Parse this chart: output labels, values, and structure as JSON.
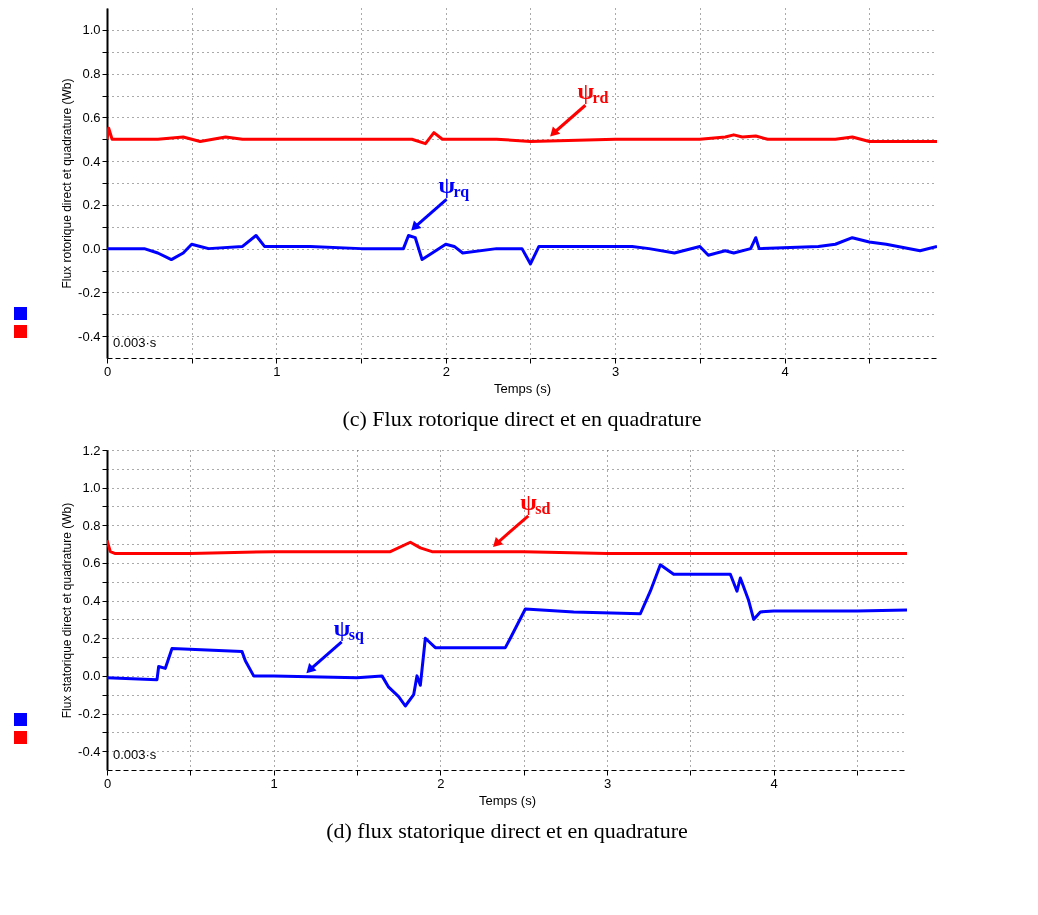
{
  "chart_data": [
    {
      "type": "line",
      "title": "(c) Flux rotorique direct et en quadrature",
      "xlabel": "Temps (s)",
      "ylabel": "Flux rotorique direct et quadrature (Wb)",
      "xlim": [
        0,
        4.9
      ],
      "ylim": [
        -0.5,
        1.1
      ],
      "xticks": [
        0,
        {
          "value": 0.5,
          "label": null
        },
        1,
        {
          "value": 1.5,
          "label": null
        },
        2,
        {
          "value": 2.5,
          "label": null
        },
        3,
        {
          "value": 3.5,
          "label": null
        },
        4,
        {
          "value": 4.5,
          "label": null
        }
      ],
      "yticks": [
        {
          "value": -0.4,
          "label": "-0.4"
        },
        {
          "value": -0.3,
          "label": null
        },
        -0.2,
        {
          "value": -0.1,
          "label": null
        },
        {
          "value": 0,
          "label": "0.0"
        },
        {
          "value": 0.1,
          "label": null
        },
        0.2,
        {
          "value": 0.3,
          "label": null
        },
        0.4,
        {
          "value": 0.5,
          "label": null
        },
        0.6,
        {
          "value": 0.7,
          "label": null
        },
        0.8,
        {
          "value": 0.9,
          "label": null
        },
        {
          "value": 1,
          "label": "1.0"
        }
      ],
      "grid": true,
      "line_style": "solid",
      "series": [
        {
          "color": "#ff0000",
          "x": [
            0,
            0.01,
            0.03,
            0.3,
            0.45,
            0.55,
            0.7,
            0.8,
            1.0,
            1.5,
            1.8,
            1.88,
            1.93,
            1.98,
            2.3,
            2.5,
            3.0,
            3.3,
            3.5,
            3.65,
            3.7,
            3.75,
            3.83,
            3.9,
            4.3,
            4.4,
            4.5,
            4.9
          ],
          "values": [
            0.5,
            0.55,
            0.5,
            0.5,
            0.51,
            0.49,
            0.51,
            0.5,
            0.5,
            0.5,
            0.5,
            0.48,
            0.53,
            0.5,
            0.5,
            0.49,
            0.5,
            0.5,
            0.5,
            0.51,
            0.52,
            0.51,
            0.515,
            0.5,
            0.5,
            0.51,
            0.49,
            0.49
          ]
        },
        {
          "color": "#0000ff",
          "x": [
            0,
            0.22,
            0.3,
            0.38,
            0.45,
            0.5,
            0.55,
            0.6,
            0.8,
            0.88,
            0.93,
            1.2,
            1.5,
            1.75,
            1.78,
            1.82,
            1.86,
            1.92,
            2.0,
            2.05,
            2.1,
            2.3,
            2.45,
            2.5,
            2.55,
            2.8,
            3.1,
            3.2,
            3.35,
            3.5,
            3.55,
            3.65,
            3.7,
            3.8,
            3.83,
            3.85,
            4.2,
            4.3,
            4.4,
            4.5,
            4.6,
            4.8,
            4.9
          ],
          "values": [
            0,
            0,
            -0.02,
            -0.05,
            -0.02,
            0.02,
            0.01,
            0,
            0.01,
            0.06,
            0.01,
            0.01,
            0,
            0,
            0.06,
            0.05,
            -0.05,
            -0.02,
            0.02,
            0.01,
            -0.02,
            0,
            0,
            -0.07,
            0.01,
            0.01,
            0.01,
            0,
            -0.02,
            0.01,
            -0.03,
            -0.01,
            -0.02,
            0,
            0.05,
            0,
            0.01,
            0.02,
            0.05,
            0.03,
            0.02,
            -0.01,
            0.01
          ]
        }
      ],
      "annotations": [
        {
          "text": "ψ$_{rd}$",
          "x": 2.6,
          "y": 0.5
        },
        {
          "text": "ψ$_{rq}$",
          "x": 1.78,
          "y": 0.07
        },
        "0.003·s"
      ]
    },
    {
      "type": "line",
      "title": "(d) flux statorique direct et en quadrature",
      "xlabel": "Temps (s)",
      "ylabel": "Flux statorique direct et quadrature (Wb)",
      "xlim": [
        0,
        4.8
      ],
      "ylim": [
        -0.5,
        1.2
      ],
      "xticks": [
        0,
        {
          "value": 0.5,
          "label": null
        },
        1,
        {
          "value": 1.5,
          "label": null
        },
        2,
        {
          "value": 2.5,
          "label": null
        },
        3,
        {
          "value": 3.5,
          "label": null
        },
        4,
        {
          "value": 4.5,
          "label": null
        }
      ],
      "yticks": [
        {
          "value": -0.4,
          "label": "-0.4"
        },
        {
          "value": -0.3,
          "label": null
        },
        -0.2,
        {
          "value": -0.1,
          "label": null
        },
        {
          "value": 0,
          "label": "0.0"
        },
        {
          "value": 0.1,
          "label": null
        },
        0.2,
        {
          "value": 0.3,
          "label": null
        },
        0.4,
        {
          "value": 0.5,
          "label": null
        },
        0.6,
        {
          "value": 0.7,
          "label": null
        },
        0.8,
        {
          "value": 0.9,
          "label": null
        },
        {
          "value": 1,
          "label": "1.0"
        },
        {
          "value": 1.1,
          "label": null
        },
        1.2
      ],
      "grid": true,
      "line_style": "solid",
      "series": [
        {
          "color": "#ff0000",
          "x": [
            0,
            0.02,
            0.05,
            0.5,
            1.0,
            1.7,
            1.82,
            1.88,
            1.95,
            2.5,
            3.0,
            4.0,
            4.8
          ],
          "values": [
            0.72,
            0.66,
            0.65,
            0.65,
            0.66,
            0.66,
            0.71,
            0.68,
            0.66,
            0.66,
            0.65,
            0.65,
            0.65
          ]
        },
        {
          "color": "#0000ff",
          "x": [
            0,
            0.3,
            0.31,
            0.35,
            0.39,
            0.81,
            0.83,
            0.88,
            1.0,
            1.5,
            1.65,
            1.69,
            1.75,
            1.79,
            1.84,
            1.86,
            1.88,
            1.91,
            1.97,
            2.39,
            2.42,
            2.51,
            2.8,
            3.2,
            3.26,
            3.32,
            3.4,
            3.74,
            3.78,
            3.8,
            3.85,
            3.88,
            3.92,
            4.0,
            4.5,
            4.8
          ],
          "values": [
            -0.01,
            -0.02,
            0.05,
            0.04,
            0.145,
            0.13,
            0.08,
            0.0,
            0.0,
            -0.01,
            0.0,
            -0.06,
            -0.11,
            -0.16,
            -0.1,
            0.0,
            -0.05,
            0.2,
            0.15,
            0.15,
            0.2,
            0.355,
            0.34,
            0.33,
            0.45,
            0.59,
            0.54,
            0.54,
            0.45,
            0.52,
            0.4,
            0.3,
            0.34,
            0.345,
            0.345,
            0.35
          ]
        }
      ],
      "annotations": [
        {
          "text": "ψ$_{sd}$",
          "x": 2.3,
          "y": 0.67
        },
        {
          "text": "ψ$_{sq}$",
          "x": 1.18,
          "y": 0.0
        },
        "0.003·s"
      ]
    }
  ]
}
